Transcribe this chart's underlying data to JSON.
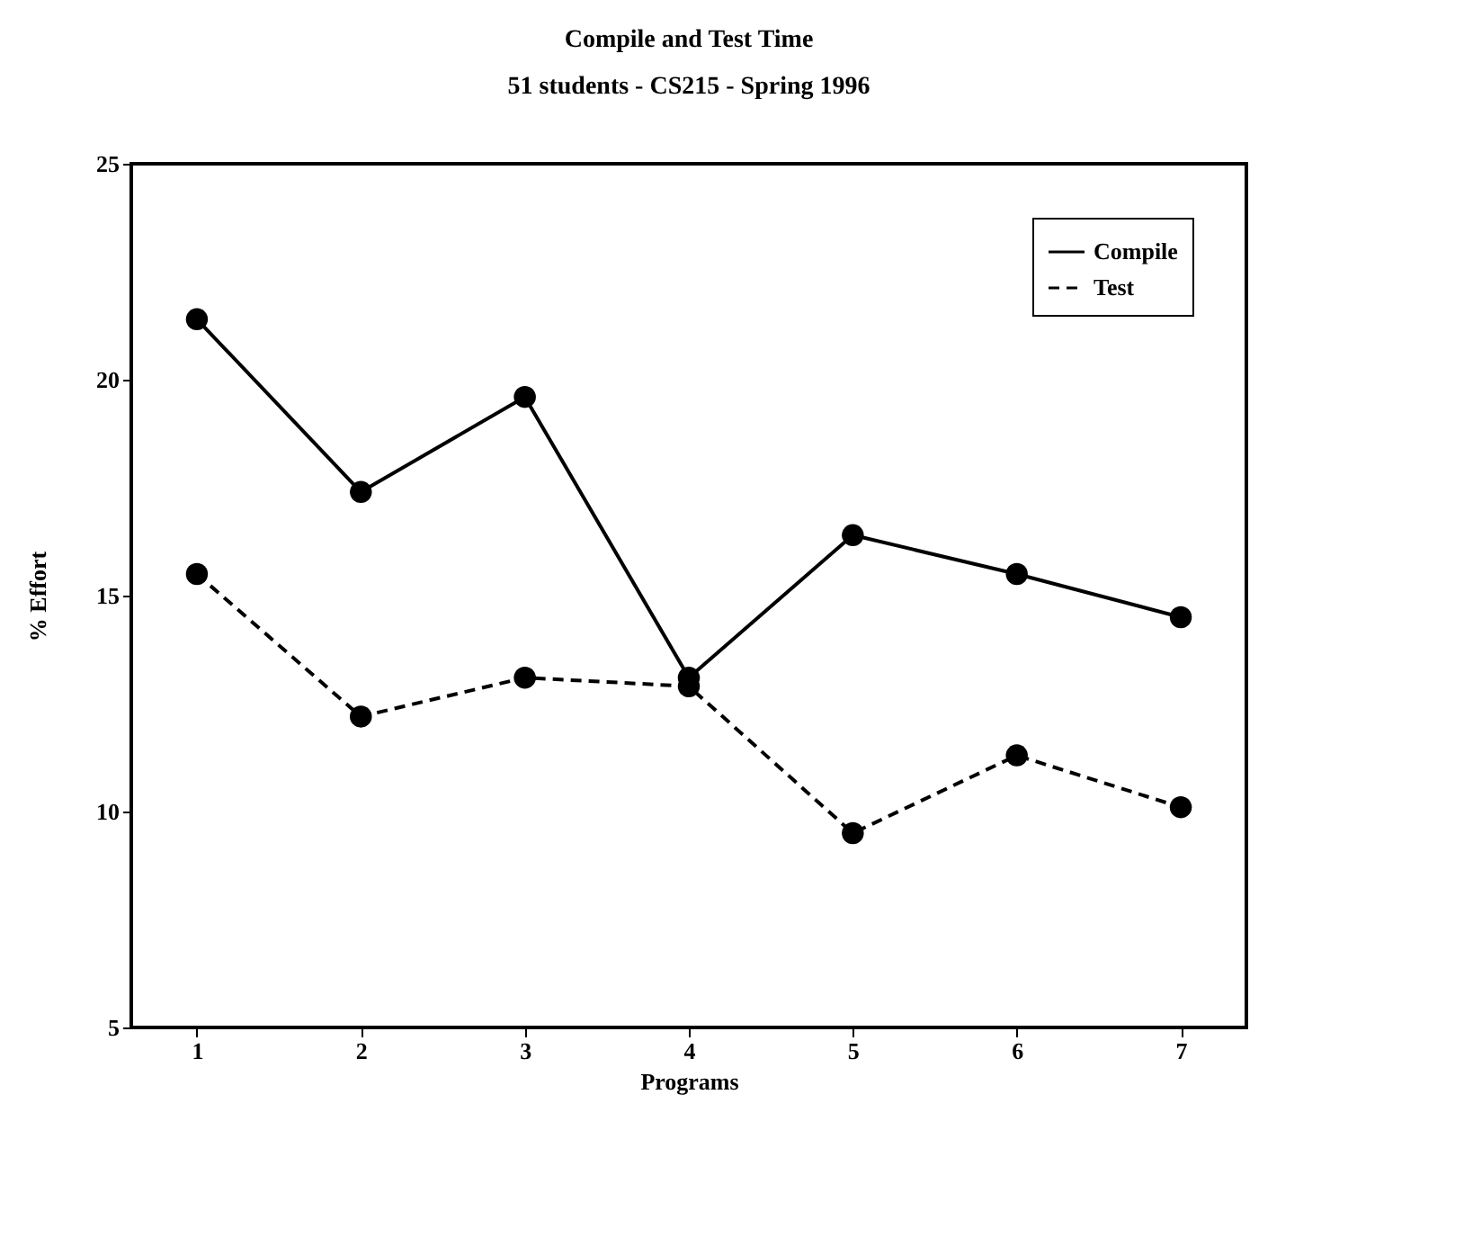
{
  "chart_data": {
    "type": "line",
    "title": "Compile and Test Time",
    "subtitle": "51 students - CS215 - Spring 1996",
    "xlabel": "Programs",
    "ylabel": "% Effort",
    "categories": [
      "1",
      "2",
      "3",
      "4",
      "5",
      "6",
      "7"
    ],
    "series": [
      {
        "name": "Compile",
        "color": "#000000",
        "line_style": "solid",
        "values": [
          21.4,
          17.4,
          19.6,
          13.1,
          16.4,
          15.5,
          14.5
        ]
      },
      {
        "name": "Test",
        "color": "#000000",
        "line_style": "dashed",
        "values": [
          15.5,
          12.2,
          13.1,
          12.9,
          9.5,
          11.3,
          10.1
        ]
      }
    ],
    "ylim": [
      5,
      25
    ],
    "yticks": [
      5,
      10,
      15,
      20,
      25
    ],
    "grid": false,
    "legend": "top right",
    "marker": "circle"
  }
}
